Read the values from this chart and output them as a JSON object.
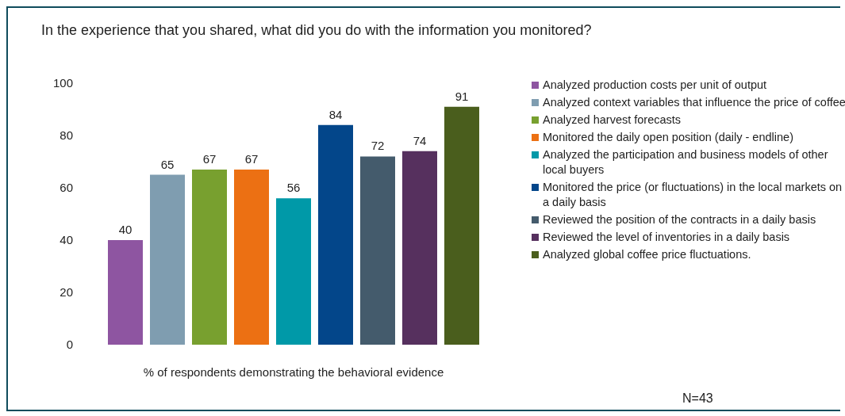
{
  "chart_data": {
    "type": "bar",
    "title": "In the experience that you shared, what did you do with the information you monitored?",
    "xlabel": "% of respondents demonstrating the behavioral evidence",
    "categories": [
      null
    ],
    "series": [
      {
        "name": "Analyzed production costs per unit of output",
        "color": "#8e55a1",
        "values": [
          40
        ]
      },
      {
        "name": "Analyzed context variables that influence the price of coffee",
        "color": "#7f9db0",
        "values": [
          65
        ]
      },
      {
        "name": "Analyzed harvest forecasts",
        "color": "#78a02f",
        "values": [
          67
        ]
      },
      {
        "name": "Monitored the daily open position (daily - endline)",
        "color": "#ec7013",
        "values": [
          67
        ]
      },
      {
        "name": "Analyzed the participation and business models of other local buyers",
        "color": "#0099a8",
        "values": [
          56
        ]
      },
      {
        "name": "Monitored the price (or fluctuations) in the local markets on a daily basis",
        "color": "#03468a",
        "values": [
          84
        ]
      },
      {
        "name": "Reviewed the position of the contracts in a daily basis",
        "color": "#445b6c",
        "values": [
          72
        ]
      },
      {
        "name": "Reviewed the level of inventories in a daily basis",
        "color": "#56305e",
        "values": [
          74
        ]
      },
      {
        "name": "Analyzed global coffee price fluctuations.",
        "color": "#4a5e1d",
        "values": [
          91
        ]
      }
    ],
    "ylim": [
      0,
      100
    ],
    "yticks": [
      0,
      20,
      40,
      60,
      80,
      100
    ],
    "legend": "right",
    "data_labels": true,
    "annotations": [
      "N=43"
    ]
  }
}
